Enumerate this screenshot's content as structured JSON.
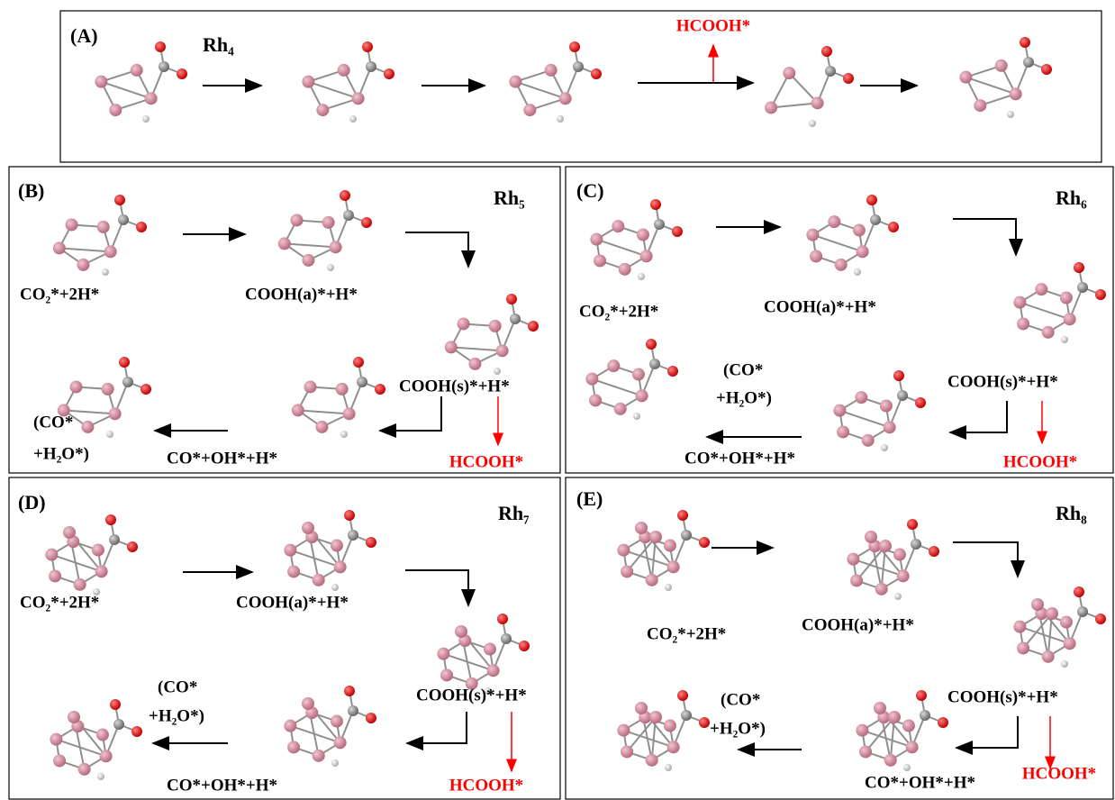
{
  "panels": [
    {
      "label": "(A)",
      "cluster": "Rh₄",
      "side_product": "HCOOH*"
    },
    {
      "label": "(B)",
      "cluster": "Rh₅",
      "states": [
        "CO₂*+2H*",
        "COOH(a)*+H*",
        "COOH(s)*+H*",
        "CO*+OH*+H*"
      ],
      "final": [
        "(CO*",
        "+H₂O*)"
      ],
      "side_product": "HCOOH*"
    },
    {
      "label": "(C)",
      "cluster": "Rh₆",
      "states": [
        "CO₂*+2H*",
        "COOH(a)*+H*",
        "COOH(s)*+H*",
        "CO*+OH*+H*"
      ],
      "final": [
        "(CO*",
        "+H₂O*)"
      ],
      "side_product": "HCOOH*"
    },
    {
      "label": "(D)",
      "cluster": "Rh₇",
      "states": [
        "CO₂*+2H*",
        "COOH(a)*+H*",
        "COOH(s)*+H*",
        "CO*+OH*+H*"
      ],
      "final": [
        "(CO*",
        "+H₂O*)"
      ],
      "side_product": "HCOOH*"
    },
    {
      "label": "(E)",
      "cluster": "Rh₈",
      "states": [
        "CO₂*+2H*",
        "COOH(a)*+H*",
        "COOH(s)*+H*",
        "CO*+OH*+H*"
      ],
      "final": [
        "(CO*",
        "+H₂O*)"
      ],
      "side_product": "HCOOH*"
    }
  ]
}
